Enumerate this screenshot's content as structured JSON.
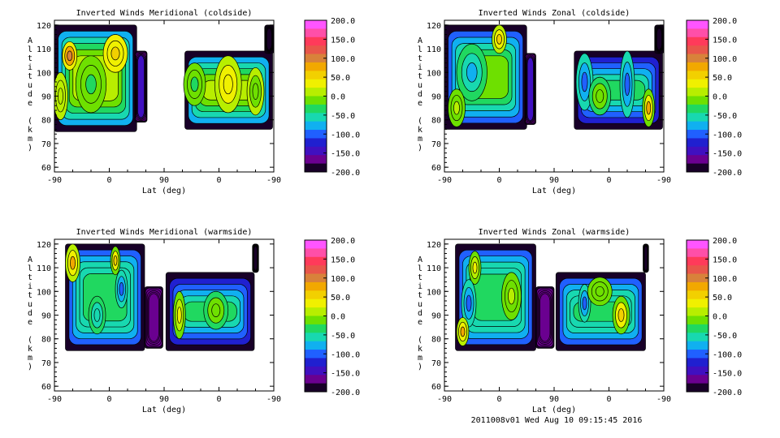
{
  "footer": "2011008v01 Wed Aug 10 09:15:45 2016",
  "colorbar": {
    "labels": [
      "200.0",
      "150.0",
      "100.0",
      "50.0",
      "0.0",
      "-50.0",
      "-100.0",
      "-150.0",
      "-200.0"
    ],
    "colors": [
      "#ff55ff",
      "#ff4fa8",
      "#ff3a5a",
      "#e8564a",
      "#d8823a",
      "#f2a800",
      "#f2d000",
      "#f0f000",
      "#b8ee00",
      "#6ee000",
      "#20d860",
      "#18d8b0",
      "#10b0f0",
      "#2060ff",
      "#2020d0",
      "#4010c0",
      "#6a0090",
      "#180028"
    ]
  },
  "chart_data": [
    {
      "type": "contour",
      "title": "Inverted Winds Meridional (coldside)",
      "xlabel": "Lat (deg)",
      "ylabel": "Altitude (km)",
      "xticks": [
        "-90",
        "0",
        "90",
        "0",
        "-90"
      ],
      "yticks": [
        "60",
        "70",
        "80",
        "90",
        "100",
        "110",
        "120"
      ],
      "ylim": [
        58,
        122
      ],
      "crange": [
        -200,
        200
      ],
      "regions": [
        {
          "x0": -90,
          "x1": 45,
          "y0": 75,
          "y1": 120,
          "base": 10,
          "blobs": [
            {
              "cx": -65,
              "cy": 107,
              "rx": 12,
              "ry": 6,
              "v": 105
            },
            {
              "cx": -30,
              "cy": 95,
              "rx": 25,
              "ry": 12,
              "v": -35
            },
            {
              "cx": 10,
              "cy": 108,
              "rx": 20,
              "ry": 8,
              "v": 50
            },
            {
              "cx": -80,
              "cy": 90,
              "rx": 12,
              "ry": 10,
              "v": 20
            }
          ]
        },
        {
          "x0": 42,
          "x1": 62,
          "y0": 79,
          "y1": 109,
          "base": -150,
          "blobs": []
        },
        {
          "x0": 124,
          "x1": 268,
          "y0": 76,
          "y1": 109,
          "base": 15,
          "blobs": [
            {
              "cx": 140,
              "cy": 95,
              "rx": 18,
              "ry": 9,
              "v": -30
            },
            {
              "cx": 195,
              "cy": 95,
              "rx": 22,
              "ry": 12,
              "v": 35
            },
            {
              "cx": 240,
              "cy": 92,
              "rx": 14,
              "ry": 10,
              "v": -20
            }
          ]
        },
        {
          "x0": 255,
          "x1": 270,
          "y0": 108,
          "y1": 120,
          "base": -180,
          "blobs": []
        }
      ]
    },
    {
      "type": "contour",
      "title": "Inverted Winds Zonal (coldside)",
      "xlabel": "Lat (deg)",
      "ylabel": "Altitude (km)",
      "xticks": [
        "-90",
        "0",
        "90",
        "0",
        "-90"
      ],
      "yticks": [
        "60",
        "70",
        "80",
        "90",
        "100",
        "110",
        "120"
      ],
      "ylim": [
        58,
        122
      ],
      "crange": [
        -200,
        200
      ],
      "regions": [
        {
          "x0": -90,
          "x1": 45,
          "y0": 76,
          "y1": 120,
          "base": -20,
          "blobs": [
            {
              "cx": -45,
              "cy": 100,
              "rx": 25,
              "ry": 12,
              "v": -70
            },
            {
              "cx": 0,
              "cy": 114,
              "rx": 12,
              "ry": 6,
              "v": 60
            },
            {
              "cx": -70,
              "cy": 85,
              "rx": 14,
              "ry": 8,
              "v": 5
            }
          ]
        },
        {
          "x0": 42,
          "x1": 60,
          "y0": 78,
          "y1": 108,
          "base": -150,
          "blobs": []
        },
        {
          "x0": 123,
          "x1": 268,
          "y0": 76,
          "y1": 109,
          "base": -40,
          "blobs": [
            {
              "cx": 140,
              "cy": 96,
              "rx": 14,
              "ry": 12,
              "v": -90
            },
            {
              "cx": 210,
              "cy": 95,
              "rx": 12,
              "ry": 14,
              "v": -110
            },
            {
              "cx": 245,
              "cy": 85,
              "rx": 10,
              "ry": 8,
              "v": 80
            },
            {
              "cx": 165,
              "cy": 90,
              "rx": 18,
              "ry": 8,
              "v": 0
            }
          ]
        },
        {
          "x0": 255,
          "x1": 270,
          "y0": 108,
          "y1": 120,
          "base": -180,
          "blobs": []
        }
      ]
    },
    {
      "type": "contour",
      "title": "Inverted Winds Meridional (warmside)",
      "xlabel": "Lat (deg)",
      "ylabel": "Altitude (km)",
      "xticks": [
        "-90",
        "0",
        "90",
        "0",
        "-90"
      ],
      "yticks": [
        "60",
        "70",
        "80",
        "90",
        "100",
        "110",
        "120"
      ],
      "ylim": [
        58,
        122
      ],
      "crange": [
        -200,
        200
      ],
      "regions": [
        {
          "x0": -72,
          "x1": 58,
          "y0": 75,
          "y1": 120,
          "base": -30,
          "blobs": [
            {
              "cx": -60,
              "cy": 112,
              "rx": 12,
              "ry": 8,
              "v": 70
            },
            {
              "cx": 20,
              "cy": 101,
              "rx": 10,
              "ry": 8,
              "v": -110
            },
            {
              "cx": -20,
              "cy": 90,
              "rx": 14,
              "ry": 8,
              "v": -60
            },
            {
              "cx": 10,
              "cy": 113,
              "rx": 8,
              "ry": 6,
              "v": 55
            }
          ]
        },
        {
          "x0": 58,
          "x1": 88,
          "y0": 76,
          "y1": 102,
          "base": -160,
          "blobs": []
        },
        {
          "x0": 93,
          "x1": 238,
          "y0": 75,
          "y1": 108,
          "base": -40,
          "blobs": [
            {
              "cx": 115,
              "cy": 90,
              "rx": 10,
              "ry": 10,
              "v": 40
            },
            {
              "cx": 175,
              "cy": 92,
              "rx": 20,
              "ry": 8,
              "v": -5
            }
          ]
        },
        {
          "x0": 235,
          "x1": 245,
          "y0": 108,
          "y1": 120,
          "base": -180,
          "blobs": []
        }
      ]
    },
    {
      "type": "contour",
      "title": "Inverted Winds Zonal (warmside)",
      "xlabel": "Lat (deg)",
      "ylabel": "Altitude (km)",
      "xticks": [
        "-90",
        "0",
        "90",
        "0",
        "-90"
      ],
      "yticks": [
        "60",
        "70",
        "80",
        "90",
        "100",
        "110",
        "120"
      ],
      "ylim": [
        58,
        122
      ],
      "crange": [
        -200,
        200
      ],
      "regions": [
        {
          "x0": -72,
          "x1": 60,
          "y0": 75,
          "y1": 120,
          "base": -30,
          "blobs": [
            {
              "cx": -40,
              "cy": 110,
              "rx": 10,
              "ry": 7,
              "v": 40
            },
            {
              "cx": -50,
              "cy": 95,
              "rx": 12,
              "ry": 10,
              "v": -90
            },
            {
              "cx": 20,
              "cy": 98,
              "rx": 16,
              "ry": 10,
              "v": 10
            },
            {
              "cx": -60,
              "cy": 83,
              "rx": 10,
              "ry": 6,
              "v": 70
            }
          ]
        },
        {
          "x0": 60,
          "x1": 90,
          "y0": 76,
          "y1": 102,
          "base": -160,
          "blobs": []
        },
        {
          "x0": 93,
          "x1": 240,
          "y0": 75,
          "y1": 108,
          "base": -30,
          "blobs": [
            {
              "cx": 140,
              "cy": 95,
              "rx": 10,
              "ry": 8,
              "v": -90
            },
            {
              "cx": 200,
              "cy": 90,
              "rx": 14,
              "ry": 8,
              "v": 60
            },
            {
              "cx": 165,
              "cy": 100,
              "rx": 20,
              "ry": 6,
              "v": -5
            }
          ]
        },
        {
          "x0": 236,
          "x1": 245,
          "y0": 108,
          "y1": 120,
          "base": -180,
          "blobs": []
        }
      ]
    }
  ]
}
